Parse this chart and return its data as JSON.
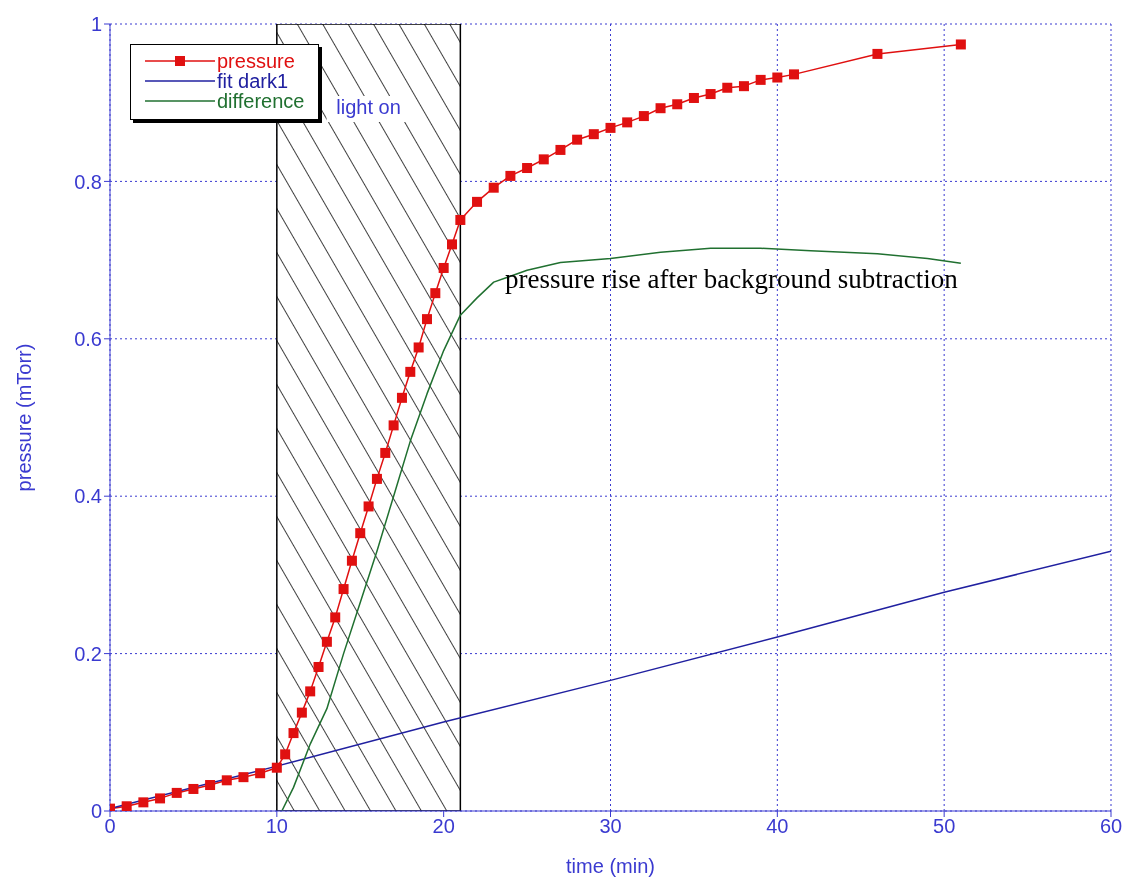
{
  "chart_data": {
    "type": "line",
    "xlabel": "time (min)",
    "ylabel": "pressure (mTorr)",
    "xlim": [
      0,
      60
    ],
    "xticks": [
      0,
      10,
      20,
      30,
      40,
      50,
      60
    ],
    "ylim": [
      0,
      1
    ],
    "yticks": [
      0,
      0.2,
      0.4,
      0.6,
      0.8,
      1
    ],
    "grid": true,
    "legend": "top left",
    "line_style": "solid",
    "series": [
      {
        "name": "pressure",
        "color": "#e01010",
        "marker": "square",
        "x": [
          0,
          1,
          2,
          3,
          4,
          5,
          6,
          7,
          8,
          9,
          10,
          10.5,
          11,
          11.5,
          12,
          12.5,
          13,
          13.5,
          14,
          14.5,
          15,
          15.5,
          16,
          16.5,
          17,
          17.5,
          18,
          18.5,
          19,
          19.5,
          20,
          20.5,
          21,
          22,
          23,
          24,
          25,
          26,
          27,
          28,
          29,
          30,
          31,
          32,
          33,
          34,
          35,
          36,
          37,
          38,
          39,
          40,
          41,
          46,
          51
        ],
        "values": [
          0.003,
          0.006,
          0.011,
          0.016,
          0.023,
          0.028,
          0.033,
          0.039,
          0.043,
          0.048,
          0.055,
          0.072,
          0.099,
          0.125,
          0.152,
          0.183,
          0.215,
          0.246,
          0.282,
          0.318,
          0.353,
          0.387,
          0.422,
          0.455,
          0.49,
          0.525,
          0.558,
          0.589,
          0.625,
          0.658,
          0.69,
          0.72,
          0.751,
          0.774,
          0.792,
          0.807,
          0.817,
          0.828,
          0.84,
          0.853,
          0.86,
          0.868,
          0.875,
          0.883,
          0.893,
          0.898,
          0.906,
          0.911,
          0.919,
          0.921,
          0.929,
          0.932,
          0.936,
          0.962,
          0.974
        ]
      },
      {
        "name": "fit dark1",
        "color": "#2020a0",
        "marker": "none",
        "x": [
          0,
          10,
          20,
          30,
          40,
          50,
          60
        ],
        "values": [
          0.003,
          0.057,
          0.113,
          0.166,
          0.221,
          0.278,
          0.33
        ]
      },
      {
        "name": "difference",
        "color": "#207030",
        "marker": "none",
        "x": [
          10.3,
          11,
          12,
          13,
          14,
          15,
          16,
          17,
          18,
          19,
          20,
          21,
          22,
          23,
          25,
          27,
          30,
          33,
          36,
          39,
          42,
          46,
          49,
          51
        ],
        "values": [
          0,
          0.03,
          0.085,
          0.13,
          0.2,
          0.265,
          0.33,
          0.4,
          0.47,
          0.53,
          0.585,
          0.63,
          0.652,
          0.672,
          0.687,
          0.697,
          0.702,
          0.71,
          0.715,
          0.715,
          0.712,
          0.708,
          0.702,
          0.696
        ]
      }
    ],
    "bands": [
      {
        "axis": "x",
        "from": 10,
        "to": 21,
        "label": "light on"
      }
    ],
    "annotations": [
      "pressure rise after background subtraction"
    ]
  }
}
